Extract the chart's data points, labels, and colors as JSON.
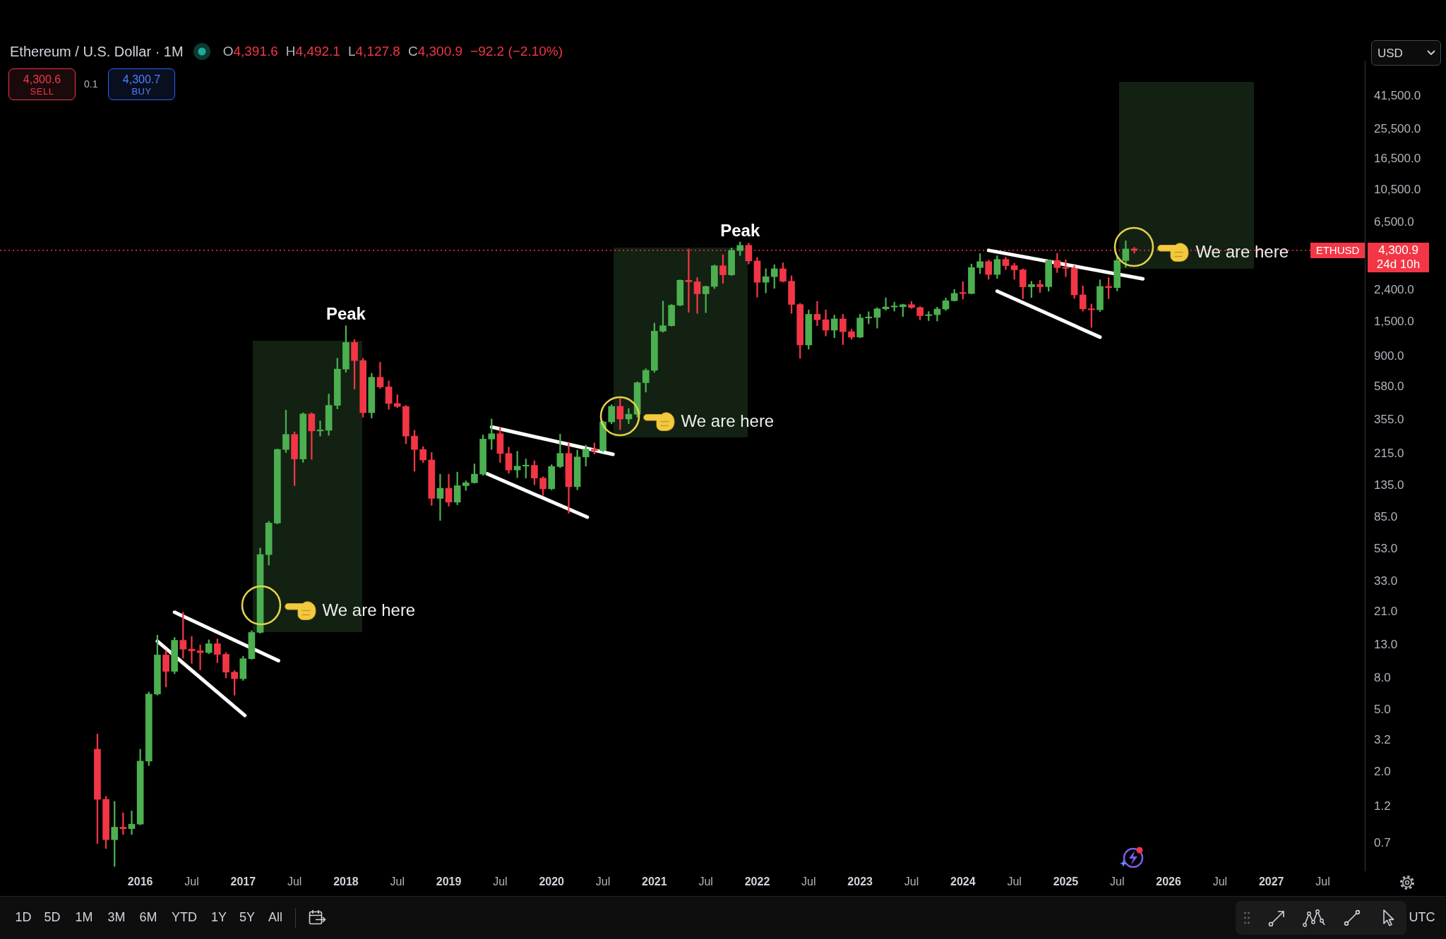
{
  "chart_data": {
    "type": "candlestick",
    "title": "Ethereum / U.S. Dollar · 1M",
    "x": [
      "2015-08",
      "2015-09",
      "2015-10",
      "2015-11",
      "2015-12",
      "2016-01",
      "2016-02",
      "2016-03",
      "2016-04",
      "2016-05",
      "2016-06",
      "2016-07",
      "2016-08",
      "2016-09",
      "2016-10",
      "2016-11",
      "2016-12",
      "2017-01",
      "2017-02",
      "2017-03",
      "2017-04",
      "2017-05",
      "2017-06",
      "2017-07",
      "2017-08",
      "2017-09",
      "2017-10",
      "2017-11",
      "2017-12",
      "2018-01",
      "2018-02",
      "2018-03",
      "2018-04",
      "2018-05",
      "2018-06",
      "2018-07",
      "2018-08",
      "2018-09",
      "2018-10",
      "2018-11",
      "2018-12",
      "2019-01",
      "2019-02",
      "2019-03",
      "2019-04",
      "2019-05",
      "2019-06",
      "2019-07",
      "2019-08",
      "2019-09",
      "2019-10",
      "2019-11",
      "2019-12",
      "2020-01",
      "2020-02",
      "2020-03",
      "2020-04",
      "2020-05",
      "2020-06",
      "2020-07",
      "2020-08",
      "2020-09",
      "2020-10",
      "2020-11",
      "2020-12",
      "2021-01",
      "2021-02",
      "2021-03",
      "2021-04",
      "2021-05",
      "2021-06",
      "2021-07",
      "2021-08",
      "2021-09",
      "2021-10",
      "2021-11",
      "2021-12",
      "2022-01",
      "2022-02",
      "2022-03",
      "2022-04",
      "2022-05",
      "2022-06",
      "2022-07",
      "2022-08",
      "2022-09",
      "2022-10",
      "2022-11",
      "2022-12",
      "2023-01",
      "2023-02",
      "2023-03",
      "2023-04",
      "2023-05",
      "2023-06",
      "2023-07",
      "2023-08",
      "2023-09",
      "2023-10",
      "2023-11",
      "2023-12",
      "2024-01",
      "2024-02",
      "2024-03",
      "2024-04",
      "2024-05",
      "2024-06",
      "2024-07",
      "2024-08",
      "2024-09",
      "2024-10",
      "2024-11",
      "2024-12",
      "2025-01",
      "2025-02",
      "2025-03",
      "2025-04",
      "2025-05",
      "2025-06",
      "2025-07",
      "2025-08",
      "2025-09"
    ],
    "ohlc": [
      [
        2.8,
        3.5,
        0.7,
        1.34
      ],
      [
        1.34,
        1.4,
        0.65,
        0.74
      ],
      [
        0.74,
        1.3,
        0.5,
        0.89
      ],
      [
        0.89,
        1.1,
        0.8,
        0.87
      ],
      [
        0.87,
        1.13,
        0.8,
        0.93
      ],
      [
        0.93,
        2.8,
        0.92,
        2.35
      ],
      [
        2.35,
        6.5,
        2.2,
        6.3
      ],
      [
        6.3,
        15,
        6.2,
        11.2
      ],
      [
        11.2,
        12,
        7,
        8.8
      ],
      [
        8.8,
        14.5,
        8.5,
        13.9
      ],
      [
        13.9,
        21,
        10.7,
        12.2
      ],
      [
        12.2,
        14.7,
        9.9,
        11.9
      ],
      [
        11.9,
        13,
        9,
        11.6
      ],
      [
        11.6,
        14,
        11.4,
        13.2
      ],
      [
        13.2,
        14.2,
        10,
        11.3
      ],
      [
        11.3,
        11.6,
        8,
        8.7
      ],
      [
        8.7,
        8.9,
        6.2,
        7.9
      ],
      [
        7.9,
        11,
        7.7,
        10.6
      ],
      [
        10.6,
        16,
        10.5,
        15.6
      ],
      [
        15.6,
        54,
        15.4,
        49
      ],
      [
        49,
        80,
        42,
        78
      ],
      [
        78,
        232,
        77,
        230
      ],
      [
        230,
        410,
        220,
        287
      ],
      [
        287,
        298,
        135,
        200
      ],
      [
        200,
        395,
        190,
        388
      ],
      [
        388,
        395,
        199,
        302
      ],
      [
        302,
        350,
        280,
        305
      ],
      [
        305,
        520,
        283,
        440
      ],
      [
        440,
        880,
        418,
        750
      ],
      [
        750,
        1420,
        716,
        1110
      ],
      [
        1110,
        1160,
        560,
        850
      ],
      [
        850,
        880,
        370,
        395
      ],
      [
        395,
        705,
        365,
        665
      ],
      [
        665,
        830,
        565,
        577
      ],
      [
        577,
        630,
        415,
        452
      ],
      [
        452,
        515,
        425,
        433
      ],
      [
        433,
        440,
        250,
        280
      ],
      [
        280,
        305,
        167,
        230
      ],
      [
        230,
        240,
        190,
        197
      ],
      [
        197,
        220,
        101,
        112
      ],
      [
        112,
        160,
        81,
        130
      ],
      [
        130,
        160,
        100,
        106
      ],
      [
        106,
        165,
        102,
        135
      ],
      [
        135,
        145,
        126,
        141
      ],
      [
        141,
        186,
        140,
        160
      ],
      [
        160,
        285,
        157,
        268
      ],
      [
        268,
        360,
        230,
        290
      ],
      [
        290,
        318,
        190,
        217
      ],
      [
        217,
        238,
        162,
        170
      ],
      [
        170,
        224,
        152,
        180
      ],
      [
        180,
        200,
        151,
        182
      ],
      [
        182,
        195,
        137,
        151
      ],
      [
        151,
        154,
        117,
        129
      ],
      [
        129,
        184,
        127,
        179
      ],
      [
        179,
        288,
        176,
        217
      ],
      [
        217,
        253,
        90,
        133
      ],
      [
        133,
        228,
        127,
        206
      ],
      [
        206,
        245,
        180,
        231
      ],
      [
        231,
        253,
        215,
        226
      ],
      [
        226,
        350,
        222,
        345
      ],
      [
        345,
        445,
        335,
        434
      ],
      [
        434,
        488,
        308,
        360
      ],
      [
        360,
        420,
        336,
        386
      ],
      [
        386,
        623,
        371,
        614
      ],
      [
        614,
        755,
        535,
        737
      ],
      [
        737,
        1475,
        715,
        1310
      ],
      [
        1310,
        2040,
        1290,
        1420
      ],
      [
        1420,
        1940,
        1410,
        1920
      ],
      [
        1920,
        2790,
        1900,
        2770
      ],
      [
        2770,
        4380,
        1730,
        2710
      ],
      [
        2710,
        2890,
        1700,
        2270
      ],
      [
        2270,
        2550,
        1720,
        2530
      ],
      [
        2530,
        3470,
        2450,
        3430
      ],
      [
        3430,
        4030,
        2650,
        3000
      ],
      [
        3000,
        4460,
        2970,
        4290
      ],
      [
        4290,
        4870,
        3980,
        4630
      ],
      [
        4630,
        4780,
        3520,
        3680
      ],
      [
        3680,
        3880,
        2160,
        2690
      ],
      [
        2690,
        3280,
        2300,
        2920
      ],
      [
        2920,
        3480,
        2460,
        3280
      ],
      [
        3280,
        3580,
        2700,
        2730
      ],
      [
        2730,
        2960,
        1700,
        1940
      ],
      [
        1940,
        1975,
        880,
        1070
      ],
      [
        1070,
        1790,
        1005,
        1680
      ],
      [
        1680,
        2030,
        1420,
        1550
      ],
      [
        1550,
        1790,
        1220,
        1330
      ],
      [
        1330,
        1660,
        1190,
        1570
      ],
      [
        1570,
        1680,
        1075,
        1300
      ],
      [
        1300,
        1350,
        1160,
        1200
      ],
      [
        1200,
        1680,
        1190,
        1590
      ],
      [
        1590,
        1745,
        1460,
        1605
      ],
      [
        1605,
        1850,
        1370,
        1820
      ],
      [
        1820,
        2140,
        1780,
        1870
      ],
      [
        1870,
        2010,
        1760,
        1875
      ],
      [
        1875,
        1950,
        1625,
        1935
      ],
      [
        1935,
        2030,
        1830,
        1855
      ],
      [
        1855,
        1880,
        1550,
        1645
      ],
      [
        1645,
        1750,
        1530,
        1670
      ],
      [
        1670,
        1865,
        1520,
        1815
      ],
      [
        1815,
        2135,
        1775,
        2050
      ],
      [
        2050,
        2420,
        2040,
        2285
      ],
      [
        2285,
        2715,
        2100,
        2280
      ],
      [
        2280,
        3520,
        2265,
        3340
      ],
      [
        3340,
        4095,
        3055,
        3645
      ],
      [
        3645,
        3730,
        2810,
        3015
      ],
      [
        3015,
        3975,
        2850,
        3765
      ],
      [
        3765,
        3890,
        3240,
        3435
      ],
      [
        3435,
        3560,
        2810,
        3230
      ],
      [
        3230,
        3280,
        2110,
        2515
      ],
      [
        2515,
        2730,
        2150,
        2605
      ],
      [
        2605,
        2770,
        2310,
        2520
      ],
      [
        2520,
        3740,
        2360,
        3705
      ],
      [
        3705,
        4110,
        3100,
        3335
      ],
      [
        3335,
        3745,
        2920,
        3300
      ],
      [
        3300,
        3440,
        2120,
        2235
      ],
      [
        2235,
        2550,
        1760,
        1820
      ],
      [
        1820,
        1955,
        1385,
        1795
      ],
      [
        1795,
        2790,
        1750,
        2530
      ],
      [
        2530,
        2880,
        2110,
        2485
      ],
      [
        2485,
        3940,
        2370,
        3700
      ],
      [
        3700,
        4950,
        3355,
        4390
      ],
      [
        4391.6,
        4492.1,
        4127.8,
        4300.9
      ]
    ],
    "colors": [
      "#f23645",
      "#f23645",
      "#4caf50",
      "#f23645",
      "#4caf50",
      "#4caf50",
      "#4caf50",
      "#4caf50",
      "#f23645",
      "#4caf50",
      "#f23645",
      "#f23645",
      "#f23645",
      "#4caf50",
      "#f23645",
      "#f23645",
      "#f23645",
      "#4caf50",
      "#4caf50",
      "#4caf50",
      "#4caf50",
      "#4caf50",
      "#4caf50",
      "#f23645",
      "#4caf50",
      "#f23645",
      "#4caf50",
      "#4caf50",
      "#4caf50",
      "#4caf50",
      "#f23645",
      "#f23645",
      "#4caf50",
      "#f23645",
      "#f23645",
      "#f23645",
      "#f23645",
      "#f23645",
      "#f23645",
      "#f23645",
      "#4caf50",
      "#f23645",
      "#4caf50",
      "#4caf50",
      "#4caf50",
      "#4caf50",
      "#4caf50",
      "#f23645",
      "#f23645",
      "#4caf50",
      "#4caf50",
      "#f23645",
      "#f23645",
      "#4caf50",
      "#4caf50",
      "#f23645",
      "#4caf50",
      "#4caf50",
      "#f23645",
      "#4caf50",
      "#4caf50",
      "#f23645",
      "#4caf50",
      "#4caf50",
      "#4caf50",
      "#4caf50",
      "#4caf50",
      "#4caf50",
      "#4caf50",
      "#f23645",
      "#f23645",
      "#4caf50",
      "#4caf50",
      "#f23645",
      "#4caf50",
      "#4caf50",
      "#f23645",
      "#f23645",
      "#4caf50",
      "#4caf50",
      "#f23645",
      "#f23645",
      "#f23645",
      "#4caf50",
      "#f23645",
      "#f23645",
      "#4caf50",
      "#f23645",
      "#f23645",
      "#4caf50",
      "#4caf50",
      "#4caf50",
      "#4caf50",
      "#4caf50",
      "#4caf50",
      "#f23645",
      "#f23645",
      "#4caf50",
      "#4caf50",
      "#4caf50",
      "#4caf50",
      "#f23645",
      "#4caf50",
      "#4caf50",
      "#f23645",
      "#4caf50",
      "#f23645",
      "#f23645",
      "#f23645",
      "#4caf50",
      "#f23645",
      "#4caf50",
      "#f23645",
      "#f23645",
      "#f23645",
      "#f23645",
      "#f23645",
      "#4caf50",
      "#f23645",
      "#4caf50",
      "#4caf50",
      "#f23645"
    ],
    "series": [
      {
        "type": "line",
        "color": "#ffffff",
        "x": [
          "2016-05",
          "2017-05-05"
        ],
        "values": [
          21,
          10.3
        ]
      },
      {
        "type": "line",
        "color": "#ffffff",
        "x": [
          "2016-03",
          "2017-01-07"
        ],
        "values": [
          13.7,
          4.6
        ]
      },
      {
        "type": "line",
        "color": "#ffffff",
        "x": [
          "2019-06",
          "2020-08-06"
        ],
        "values": [
          320,
          214
        ]
      },
      {
        "type": "line",
        "color": "#ffffff",
        "x": [
          "2019-05-15",
          "2020-05-06"
        ],
        "values": [
          161,
          85
        ]
      },
      {
        "type": "line",
        "color": "#ffffff",
        "x": [
          "2024-04",
          "2025-10"
        ],
        "values": [
          4300,
          2830
        ]
      },
      {
        "type": "line",
        "color": "#ffffff",
        "x": [
          "2024-05",
          "2025-05"
        ],
        "values": [
          2360,
          1200
        ]
      }
    ],
    "xlim": [
      "2014-08-20",
      "2027-11-28"
    ],
    "xticks": [
      {
        "value": "2016-01",
        "label": "2016"
      },
      {
        "value": "2016-07",
        "label": "Jul"
      },
      {
        "value": "2017-01",
        "label": "2017"
      },
      {
        "value": "2017-07",
        "label": "Jul"
      },
      {
        "value": "2018-01",
        "label": "2018"
      },
      {
        "value": "2018-07",
        "label": "Jul"
      },
      {
        "value": "2019-01",
        "label": "2019"
      },
      {
        "value": "2019-07",
        "label": "Jul"
      },
      {
        "value": "2020-01",
        "label": "2020"
      },
      {
        "value": "2020-07",
        "label": "Jul"
      },
      {
        "value": "2021-01",
        "label": "2021"
      },
      {
        "value": "2021-07",
        "label": "Jul"
      },
      {
        "value": "2022-01",
        "label": "2022"
      },
      {
        "value": "2022-07",
        "label": "Jul"
      },
      {
        "value": "2023-01",
        "label": "2023"
      },
      {
        "value": "2023-07",
        "label": "Jul"
      },
      {
        "value": "2024-01",
        "label": "2024"
      },
      {
        "value": "2024-07",
        "label": "Jul"
      },
      {
        "value": "2025-01",
        "label": "2025"
      },
      {
        "value": "2025-07",
        "label": "Jul"
      },
      {
        "value": "2026-01",
        "label": "2026"
      },
      {
        "value": "2026-07",
        "label": "Jul"
      },
      {
        "value": "2027-01",
        "label": "2027"
      },
      {
        "value": "2027-07",
        "label": "Jul"
      }
    ],
    "ylim": [
      0.47,
      70000
    ],
    "yticks": [
      0.7,
      1.2,
      {
        "value": 2,
        "label": "2.0"
      },
      3.2,
      {
        "value": 5,
        "label": "5.0"
      },
      {
        "value": 8,
        "label": "8.0"
      },
      {
        "value": 13,
        "label": "13.0"
      },
      {
        "value": 21,
        "label": "21.0"
      },
      {
        "value": 33,
        "label": "33.0"
      },
      {
        "value": 53,
        "label": "53.0"
      },
      {
        "value": 85,
        "label": "85.0"
      },
      {
        "value": 135,
        "label": "135.0"
      },
      {
        "value": 215,
        "label": "215.0"
      },
      {
        "value": 355,
        "label": "355.0"
      },
      {
        "value": 580,
        "label": "580.0"
      },
      {
        "value": 900,
        "label": "900.0"
      },
      {
        "value": 1500,
        "label": "1,500.0"
      },
      {
        "value": 2400,
        "label": "2,400.0"
      },
      {
        "value": 6500,
        "label": "6,500.0"
      },
      {
        "value": 10500,
        "label": "10,500.0"
      },
      {
        "value": 16500,
        "label": "16,500.0"
      },
      {
        "value": 25500,
        "label": "25,500.0"
      },
      {
        "value": 41500,
        "label": "41,500.0"
      }
    ],
    "log": true,
    "ref_lines": [
      {
        "axis": "y",
        "value": 4300.9,
        "label": "ETHUSD",
        "color": "#f23645",
        "line_style": "dotted"
      }
    ],
    "annotations": [
      "O",
      "4,391.6",
      "H",
      "4,492.1",
      "L",
      "4,127.8",
      "C",
      "4,300.9",
      "−92.2 (−2.10%)",
      "4,300.6",
      "SELL",
      "0.1",
      "4,300.7",
      "BUY",
      "USD",
      "4,300.9",
      "24d 10h",
      "1D",
      "5D",
      "1M",
      "3M",
      "6M",
      "YTD",
      "1Y",
      "5Y",
      "All",
      "UTC",
      "We are here",
      "We are here",
      "We are here",
      {
        "text": "Peak",
        "x": "2018-01",
        "y": 1420
      },
      {
        "text": "Peak",
        "x": "2021-11",
        "y": 4870
      }
    ]
  }
}
